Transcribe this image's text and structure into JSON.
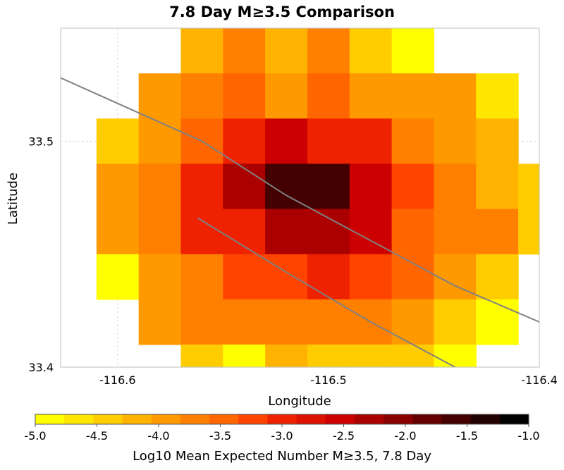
{
  "chart_data": {
    "type": "heatmap",
    "title": "7.8 Day M≥3.5 Comparison",
    "xlabel": "Longitude",
    "ylabel": "Latitude",
    "xlim": [
      -116.627,
      -116.4
    ],
    "ylim": [
      33.4,
      33.55
    ],
    "grid": true,
    "x_ticks": [
      {
        "value": -116.6,
        "label": "-116.6"
      },
      {
        "value": -116.5,
        "label": "-116.5"
      },
      {
        "value": -116.4,
        "label": "-116.4"
      }
    ],
    "y_ticks": [
      {
        "value": 33.4,
        "label": "33.4"
      },
      {
        "value": 33.5,
        "label": "33.5"
      }
    ],
    "cell_size_deg": 0.02,
    "x_centers": [
      -116.6,
      -116.58,
      -116.56,
      -116.54,
      -116.52,
      -116.5,
      -116.48,
      -116.46,
      -116.44,
      -116.42,
      -116.4
    ],
    "y_centers": [
      33.54,
      33.52,
      33.5,
      33.48,
      33.46,
      33.44,
      33.42
    ],
    "z": [
      [
        null,
        null,
        -4.2,
        -3.7,
        -4.2,
        -3.7,
        -4.4,
        -4.8,
        null,
        null,
        null
      ],
      [
        null,
        -4.0,
        -3.7,
        -3.5,
        -3.9,
        -3.5,
        -3.9,
        -4.0,
        -4.0,
        -4.7,
        null
      ],
      [
        -4.4,
        -4.0,
        -3.5,
        -2.9,
        -2.6,
        -2.9,
        -3.1,
        -3.7,
        -4.0,
        -4.2,
        null
      ],
      [
        -4.0,
        -3.7,
        -3.1,
        -2.4,
        -1.5,
        -1.5,
        -2.6,
        -3.3,
        -3.7,
        -4.2,
        -4.4
      ],
      [
        -4.0,
        -3.7,
        -3.1,
        -2.9,
        -2.2,
        -2.2,
        -2.6,
        -3.5,
        -3.6,
        -3.7,
        -4.4
      ],
      [
        -4.9,
        -4.0,
        -3.7,
        -3.2,
        -3.2,
        -2.9,
        -3.2,
        -3.5,
        -4.0,
        -4.4,
        null
      ],
      [
        null,
        -4.0,
        -3.7,
        -3.7,
        -3.7,
        -3.7,
        -3.7,
        -4.0,
        -4.4,
        -4.8,
        null
      ],
      [
        null,
        null,
        -4.4,
        -4.8,
        -4.2,
        -4.5,
        -4.5,
        -4.4,
        -4.8,
        null,
        null
      ]
    ],
    "y_rows_for_z": [
      33.54,
      33.52,
      33.5,
      33.48,
      33.46,
      33.44,
      33.42,
      33.4
    ],
    "fault_traces": [
      [
        [
          -116.627,
          33.528
        ],
        [
          -116.56,
          33.5
        ],
        [
          -116.52,
          33.476
        ],
        [
          -116.48,
          33.456
        ],
        [
          -116.44,
          33.436
        ],
        [
          -116.4,
          33.42
        ]
      ],
      [
        [
          -116.562,
          33.466
        ],
        [
          -116.52,
          33.442
        ],
        [
          -116.48,
          33.42
        ],
        [
          -116.46,
          33.41
        ],
        [
          -116.44,
          33.4
        ]
      ]
    ],
    "colorbar": {
      "min": -5.0,
      "max": -1.0,
      "ticks": [
        {
          "value": -5.0,
          "label": "-5.0"
        },
        {
          "value": -4.5,
          "label": "-4.5"
        },
        {
          "value": -4.0,
          "label": "-4.0"
        },
        {
          "value": -3.5,
          "label": "-3.5"
        },
        {
          "value": -3.0,
          "label": "-3.0"
        },
        {
          "value": -2.5,
          "label": "-2.5"
        },
        {
          "value": -2.0,
          "label": "-2.0"
        },
        {
          "value": -1.5,
          "label": "-1.5"
        },
        {
          "value": -1.0,
          "label": "-1.0"
        }
      ],
      "label": "Log10 Mean Expected Number M≥3.5, 7.8 Day",
      "colors": [
        "#ffff00",
        "#ffe600",
        "#ffcc00",
        "#ffb300",
        "#ff9900",
        "#ff8000",
        "#ff6600",
        "#ff4400",
        "#ee2200",
        "#dd1100",
        "#cc0000",
        "#aa0000",
        "#880000",
        "#660000",
        "#440000",
        "#220000",
        "#000000"
      ]
    }
  }
}
